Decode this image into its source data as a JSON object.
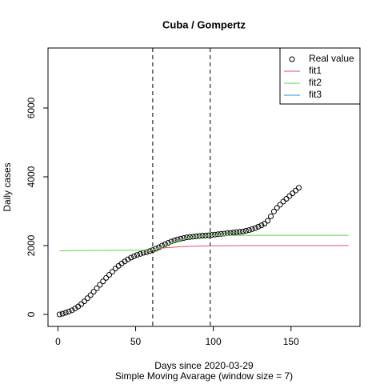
{
  "chart_data": {
    "type": "line",
    "title": "Cuba / Gompertz",
    "x_label": "Days since 2020-03-29",
    "subtitle": "Simple Moving Avarage (window size = 7)",
    "y_label": "Daily cases",
    "xlim": [
      -6.4,
      194.4
    ],
    "ylim": [
      -349,
      7744
    ],
    "xticks": [
      0,
      50,
      100,
      150
    ],
    "yticks": [
      0,
      2000,
      4000,
      6000
    ],
    "vlines": [
      61,
      98
    ],
    "legend": "top-right",
    "series": [
      {
        "name": "Real value",
        "color": "#000000",
        "marker": "circle",
        "x": [
          1,
          3,
          5,
          7,
          9,
          11,
          13,
          15,
          17,
          19,
          21,
          23,
          25,
          27,
          29,
          31,
          33,
          35,
          37,
          39,
          41,
          43,
          45,
          47,
          49,
          51,
          53,
          55,
          57,
          59,
          61,
          63,
          65,
          67,
          69,
          71,
          73,
          75,
          77,
          79,
          81,
          83,
          85,
          87,
          89,
          91,
          93,
          95,
          97,
          99,
          101,
          103,
          105,
          107,
          109,
          111,
          113,
          115,
          117,
          119,
          121,
          123,
          125,
          127,
          129,
          131,
          133,
          135,
          137,
          139,
          141,
          143,
          145,
          147,
          149,
          151,
          153,
          155
        ],
        "values": [
          0,
          20,
          50,
          80,
          120,
          170,
          230,
          300,
          380,
          470,
          560,
          660,
          760,
          860,
          960,
          1060,
          1150,
          1240,
          1330,
          1410,
          1480,
          1540,
          1600,
          1650,
          1690,
          1730,
          1760,
          1790,
          1810,
          1840,
          1870,
          1910,
          1950,
          2000,
          2040,
          2080,
          2120,
          2150,
          2180,
          2200,
          2220,
          2240,
          2250,
          2260,
          2270,
          2280,
          2290,
          2290,
          2300,
          2310,
          2320,
          2330,
          2340,
          2350,
          2360,
          2370,
          2380,
          2390,
          2400,
          2410,
          2430,
          2450,
          2480,
          2510,
          2550,
          2590,
          2640,
          2720,
          2850,
          2990,
          3100,
          3190,
          3280,
          3360,
          3440,
          3520,
          3600,
          3680
        ]
      },
      {
        "name": "fit1",
        "color": "#DF536B",
        "marker": "line",
        "x": [
          61,
          70,
          80,
          90,
          100,
          120,
          150,
          187
        ],
        "values": [
          1900,
          1940,
          1970,
          1985,
          1995,
          2000,
          2000,
          2000
        ]
      },
      {
        "name": "fit2",
        "color": "#61D04F",
        "marker": "line",
        "x": [
          1,
          61,
          65,
          70,
          75,
          80,
          85,
          90,
          95,
          100,
          120,
          150,
          187
        ],
        "values": [
          1850,
          1870,
          1930,
          2010,
          2100,
          2170,
          2220,
          2260,
          2280,
          2290,
          2300,
          2300,
          2300
        ]
      },
      {
        "name": "fit3",
        "color": "#2297E6",
        "marker": "line",
        "x": [],
        "values": []
      }
    ]
  }
}
